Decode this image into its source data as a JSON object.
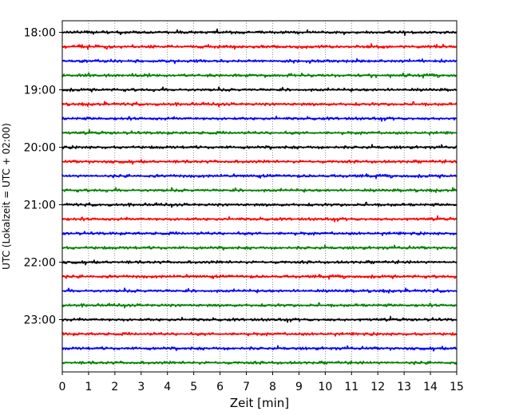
{
  "chart_data": {
    "type": "line",
    "title": "",
    "xlabel": "Zeit  [min]",
    "ylabel": "UTC (Lokalzeit = UTC + 02:00)",
    "xlim": [
      0,
      15
    ],
    "xticks": [
      0,
      1,
      2,
      3,
      4,
      5,
      6,
      7,
      8,
      9,
      10,
      11,
      12,
      13,
      14,
      15
    ],
    "yticks": [
      "18:00",
      "19:00",
      "20:00",
      "21:00",
      "22:00",
      "23:00"
    ],
    "grid": "vertical dotted",
    "trace_colors": [
      "#000000",
      "#ff0000",
      "#0000ff",
      "#008000"
    ],
    "traces": [
      {
        "start": "18:00",
        "color": "#000000",
        "x_start": 0,
        "x_end": 15
      },
      {
        "start": "18:15",
        "color": "#ff0000",
        "x_start": 0,
        "x_end": 15
      },
      {
        "start": "18:30",
        "color": "#0000ff",
        "x_start": 0,
        "x_end": 15
      },
      {
        "start": "18:45",
        "color": "#008000",
        "x_start": 0,
        "x_end": 15
      },
      {
        "start": "19:00",
        "color": "#000000",
        "x_start": 0,
        "x_end": 15
      },
      {
        "start": "19:15",
        "color": "#ff0000",
        "x_start": 0,
        "x_end": 15
      },
      {
        "start": "19:30",
        "color": "#0000ff",
        "x_start": 0,
        "x_end": 15
      },
      {
        "start": "19:45",
        "color": "#008000",
        "x_start": 0,
        "x_end": 15
      },
      {
        "start": "20:00",
        "color": "#000000",
        "x_start": 0,
        "x_end": 15
      },
      {
        "start": "20:15",
        "color": "#ff0000",
        "x_start": 0,
        "x_end": 15
      },
      {
        "start": "20:30",
        "color": "#0000ff",
        "x_start": 0,
        "x_end": 15
      },
      {
        "start": "20:45",
        "color": "#008000",
        "x_start": 0,
        "x_end": 15
      },
      {
        "start": "21:00",
        "color": "#000000",
        "x_start": 0,
        "x_end": 15
      },
      {
        "start": "21:15",
        "color": "#ff0000",
        "x_start": 0,
        "x_end": 15
      },
      {
        "start": "21:30",
        "color": "#0000ff",
        "x_start": 0,
        "x_end": 15
      },
      {
        "start": "21:45",
        "color": "#008000",
        "x_start": 0,
        "x_end": 15
      },
      {
        "start": "22:00",
        "color": "#000000",
        "x_start": 0,
        "x_end": 15
      },
      {
        "start": "22:15",
        "color": "#ff0000",
        "x_start": 0,
        "x_end": 15
      },
      {
        "start": "22:30",
        "color": "#0000ff",
        "x_start": 0,
        "x_end": 15
      },
      {
        "start": "22:45",
        "color": "#008000",
        "x_start": 0,
        "x_end": 15
      },
      {
        "start": "23:00",
        "color": "#000000",
        "x_start": 0,
        "x_end": 15
      },
      {
        "start": "23:15",
        "color": "#ff0000",
        "x_start": 0,
        "x_end": 15
      },
      {
        "start": "23:30",
        "color": "#0000ff",
        "x_start": 0,
        "x_end": 15
      },
      {
        "start": "23:45",
        "color": "#008000",
        "x_start": 0,
        "x_end": 15
      }
    ]
  }
}
